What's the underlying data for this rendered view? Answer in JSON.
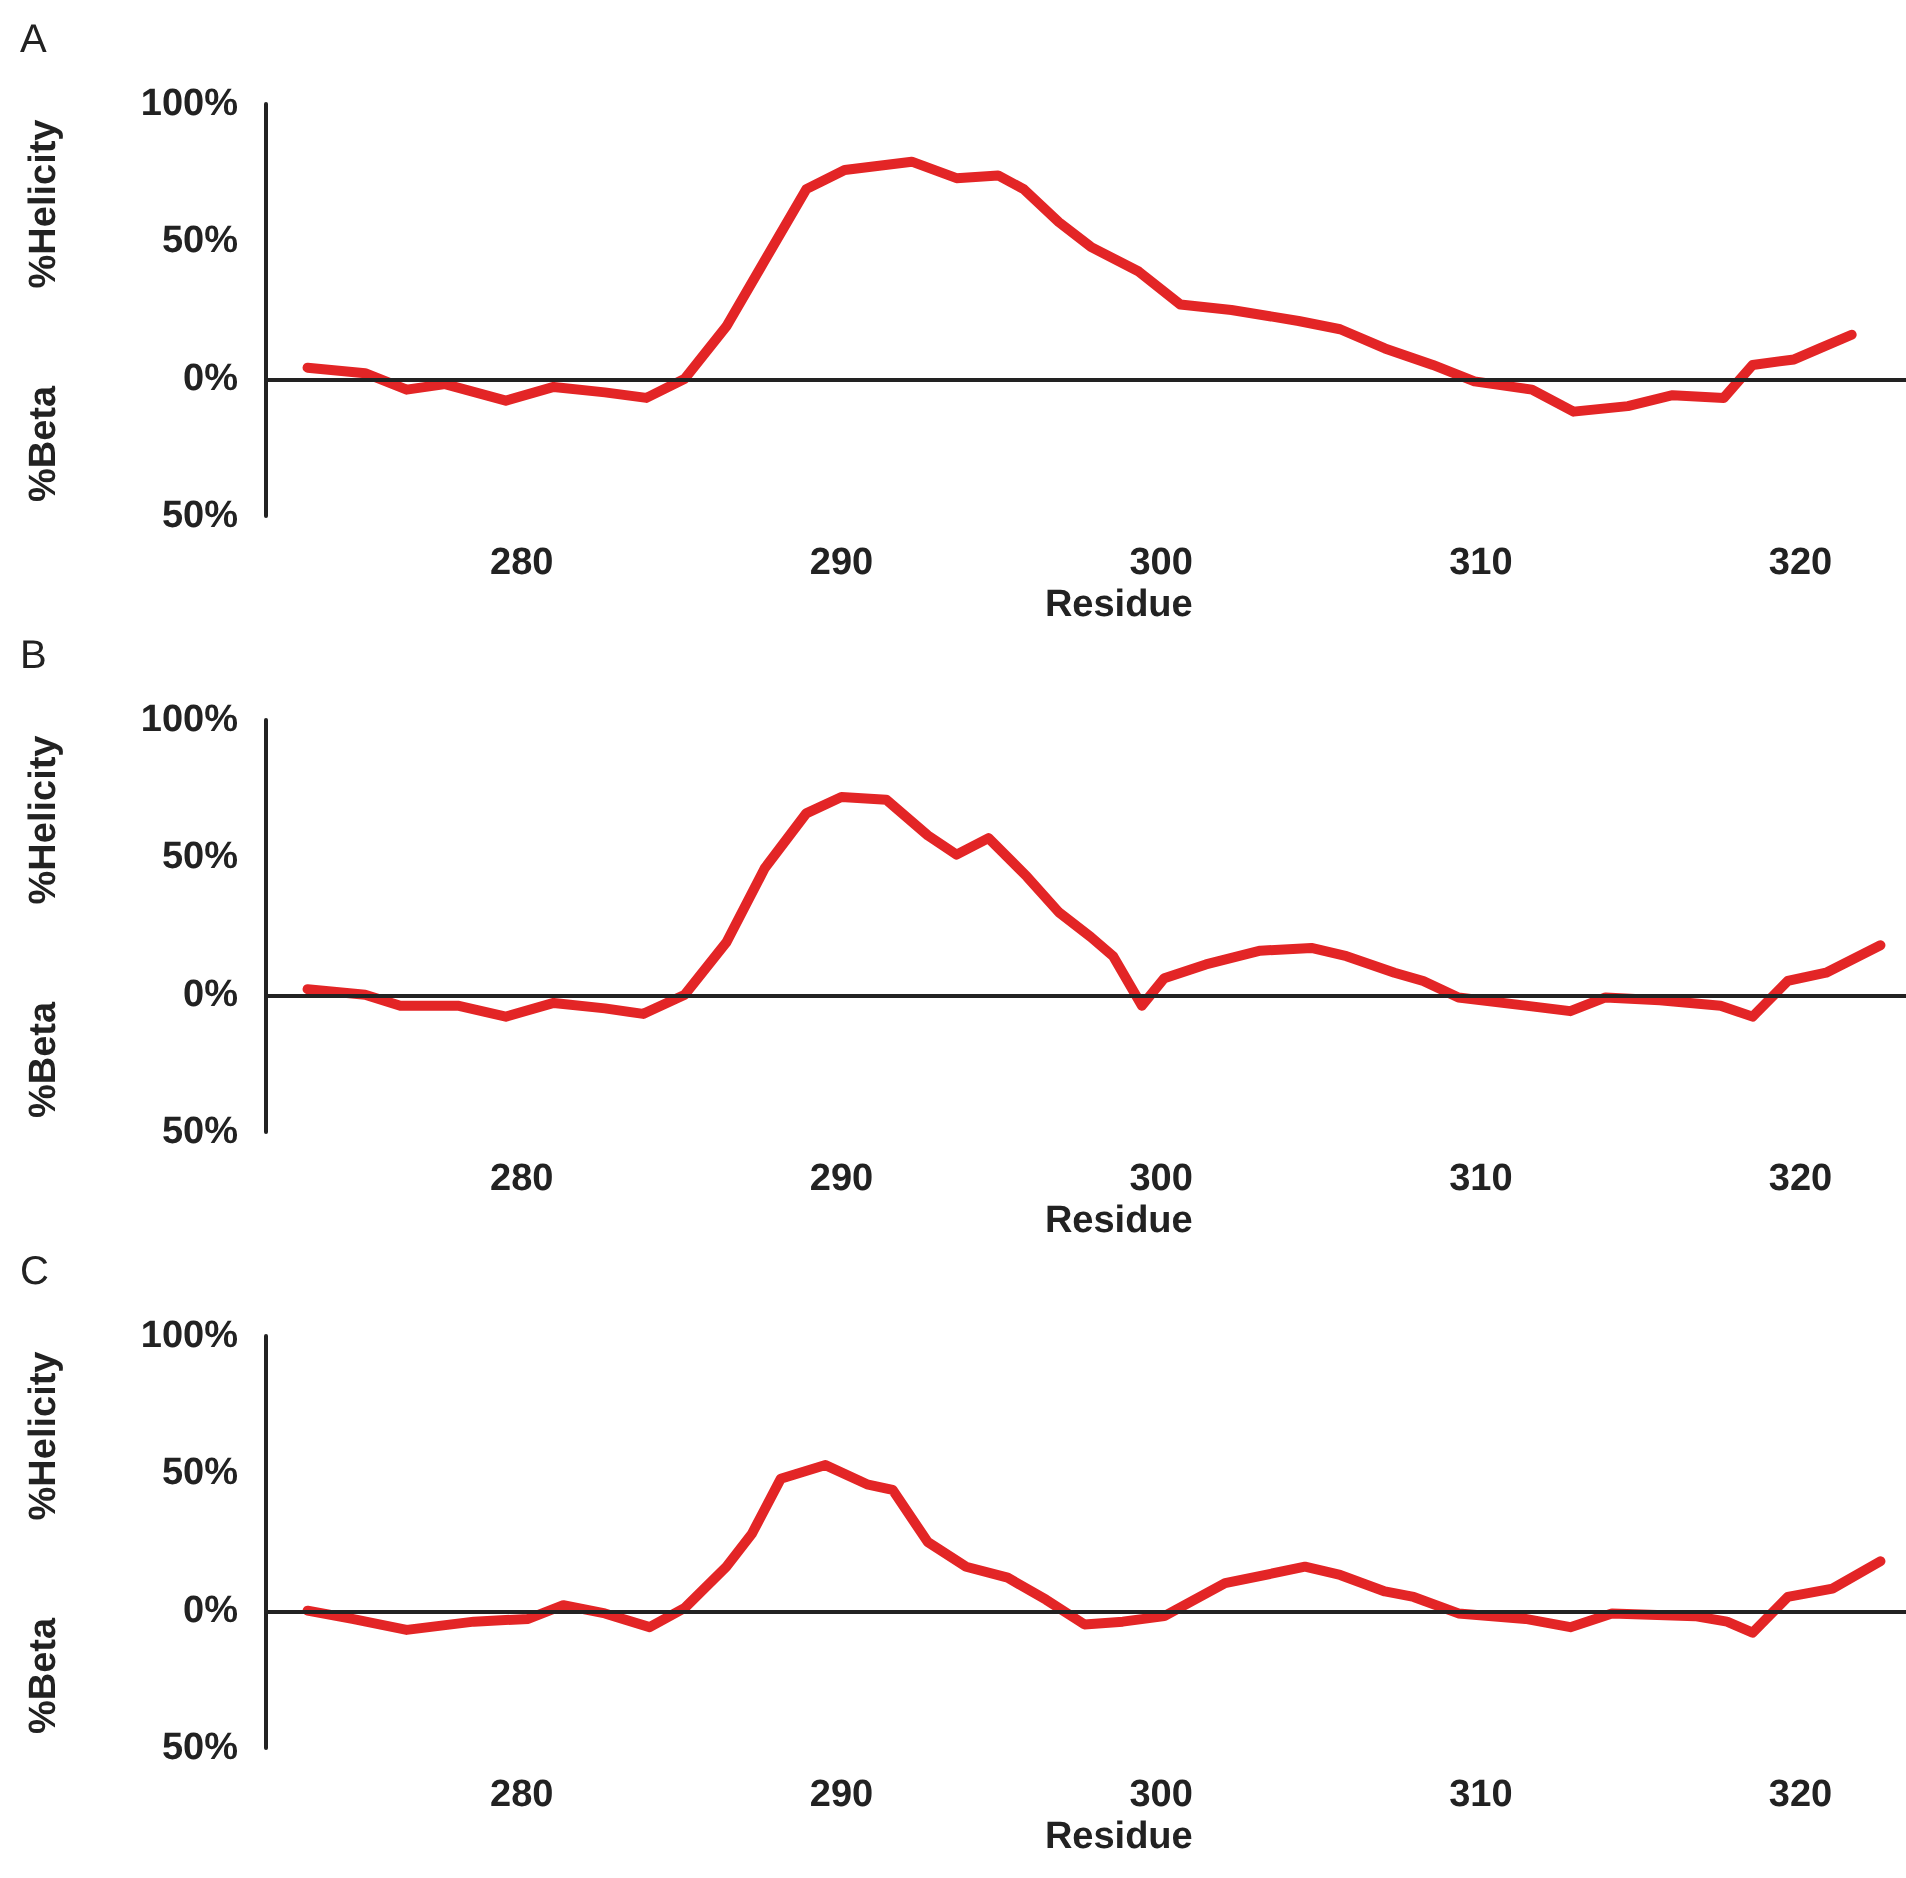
{
  "chart_data": [
    {
      "type": "line",
      "title": "A",
      "xlabel": "Residue",
      "ylabel": "%Helicity",
      "annotations": [
        "%Beta"
      ],
      "line_style": "solid",
      "marker": "none",
      "xlim": [
        272,
        323.3
      ],
      "xticks": [
        280,
        290,
        300,
        310,
        320
      ],
      "ylim": [
        -50,
        100
      ],
      "yticks": [
        {
          "value": -50,
          "label": "50%"
        },
        {
          "value": 0,
          "label": "0%"
        },
        {
          "value": 50,
          "label": "50%"
        },
        {
          "value": 100,
          "label": "100%"
        }
      ],
      "ref_lines": [
        {
          "axis": "y",
          "value": 0,
          "label": null,
          "color": "#222222"
        }
      ],
      "series": [
        {
          "color": "#e32526",
          "x": [
            273.3,
            275.1,
            276.4,
            277.6,
            279.5,
            281.0,
            282.6,
            283.9,
            285.1,
            286.4,
            287.6,
            288.9,
            290.1,
            292.2,
            293.6,
            294.9,
            295.7,
            296.8,
            297.8,
            299.3,
            300.6,
            302.2,
            304.3,
            305.6,
            307.0,
            308.5,
            309.8,
            311.6,
            312.9,
            314.6,
            316.0,
            317.6,
            318.5,
            319.8,
            320.6,
            321.6
          ],
          "values": [
            4,
            2,
            -4,
            -2,
            -8,
            -3,
            -5,
            -7,
            0,
            19,
            43,
            69,
            76,
            79,
            73,
            74,
            69,
            57,
            48,
            39,
            27,
            25,
            21,
            18,
            11,
            5,
            -1,
            -4,
            -12,
            -10,
            -6,
            -7,
            5,
            7,
            11,
            16
          ]
        }
      ]
    },
    {
      "type": "line",
      "title": "B",
      "xlabel": "Residue",
      "ylabel": "%Helicity",
      "annotations": [
        "%Beta"
      ],
      "line_style": "solid",
      "marker": "none",
      "xlim": [
        272,
        323.3
      ],
      "xticks": [
        280,
        290,
        300,
        310,
        320
      ],
      "ylim": [
        -50,
        100
      ],
      "yticks": [
        {
          "value": -50,
          "label": "50%"
        },
        {
          "value": 0,
          "label": "0%"
        },
        {
          "value": 50,
          "label": "50%"
        },
        {
          "value": 100,
          "label": "100%"
        }
      ],
      "ref_lines": [
        {
          "axis": "y",
          "value": 0,
          "label": null,
          "color": "#222222"
        }
      ],
      "series": [
        {
          "color": "#e32526",
          "x": [
            273.3,
            275.1,
            276.2,
            278.0,
            279.5,
            281.0,
            282.6,
            283.8,
            285.1,
            286.4,
            287.6,
            288.9,
            290.0,
            291.4,
            292.7,
            293.6,
            294.6,
            295.8,
            296.8,
            297.8,
            298.5,
            299.4,
            300.1,
            301.4,
            303.1,
            304.7,
            305.8,
            307.3,
            308.2,
            309.3,
            311.4,
            312.8,
            313.9,
            315.6,
            317.5,
            318.5,
            319.6,
            320.8,
            322.5
          ],
          "values": [
            2,
            0,
            -4,
            -4,
            -8,
            -3,
            -5,
            -7,
            0,
            19,
            46,
            66,
            72,
            71,
            58,
            51,
            57,
            43,
            30,
            21,
            14,
            -4,
            6,
            11,
            16,
            17,
            14,
            8,
            5,
            -1,
            -4,
            -6,
            -1,
            -2,
            -4,
            -8,
            5,
            8,
            18
          ]
        }
      ]
    },
    {
      "type": "line",
      "title": "C",
      "xlabel": "Residue",
      "ylabel": "%Helicity",
      "annotations": [
        "%Beta"
      ],
      "line_style": "solid",
      "marker": "none",
      "xlim": [
        272,
        323.3
      ],
      "xticks": [
        280,
        290,
        300,
        310,
        320
      ],
      "ylim": [
        -50,
        100
      ],
      "yticks": [
        {
          "value": -50,
          "label": "50%"
        },
        {
          "value": 0,
          "label": "0%"
        },
        {
          "value": 50,
          "label": "50%"
        },
        {
          "value": 100,
          "label": "100%"
        }
      ],
      "ref_lines": [
        {
          "axis": "y",
          "value": 0,
          "label": null,
          "color": "#222222"
        }
      ],
      "series": [
        {
          "color": "#e32526",
          "x": [
            273.3,
            274.7,
            276.4,
            278.5,
            280.2,
            281.3,
            282.6,
            284.0,
            285.1,
            286.4,
            287.2,
            288.1,
            289.5,
            290.8,
            291.6,
            292.7,
            293.9,
            295.2,
            296.4,
            297.6,
            298.8,
            300.1,
            302.0,
            304.5,
            305.6,
            307.0,
            307.9,
            309.3,
            311.4,
            312.8,
            314.1,
            316.7,
            317.7,
            318.5,
            319.6,
            321.0,
            322.5
          ],
          "values": [
            0,
            -3,
            -7,
            -4,
            -3,
            2,
            -1,
            -6,
            1,
            16,
            28,
            48,
            53,
            46,
            44,
            25,
            16,
            12,
            4,
            -5,
            -4,
            -2,
            10,
            16,
            13,
            7,
            5,
            -1,
            -3,
            -6,
            -1,
            -2,
            -4,
            -8,
            5,
            8,
            18
          ]
        }
      ]
    }
  ]
}
